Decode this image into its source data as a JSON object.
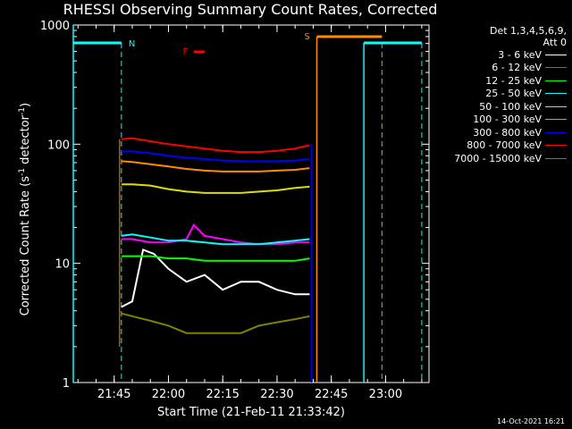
{
  "chart_data": {
    "type": "line",
    "title": "RHESSI Observing Summary Count Rates, Corrected",
    "xlabel": "Start Time (21-Feb-11 21:33:42)",
    "ylabel_main": "Corrected Count Rate (s",
    "ylabel_mid": " detector",
    "ylabel_end": ")",
    "ylabel_exp": "-1",
    "y_scale": "log",
    "ylim": [
      1,
      1000
    ],
    "xlim": [
      "21:33:42",
      "23:12:00"
    ],
    "y_ticks": [
      "1",
      "10",
      "100",
      "1000"
    ],
    "x_ticks": [
      "21:45",
      "22:00",
      "22:15",
      "22:30",
      "22:45",
      "23:00"
    ],
    "legend_header": [
      "Det 1,3,4,5,6,9,",
      "Att 0"
    ],
    "legend_placement": "right",
    "series": [
      {
        "name": "3 - 6 keV",
        "color": "#ffffff",
        "x": [
          "21:47",
          "21:50",
          "21:53",
          "21:56",
          "22:00",
          "22:05",
          "22:10",
          "22:15",
          "22:20",
          "22:25",
          "22:30",
          "22:35",
          "22:39"
        ],
        "y": [
          4.3,
          4.8,
          13,
          12,
          9,
          7,
          8,
          6,
          7,
          7,
          6,
          5.5,
          5.5
        ]
      },
      {
        "name": "6 - 12 keV",
        "color": "#ff00ff",
        "x": [
          "21:47",
          "21:50",
          "21:55",
          "22:00",
          "22:05",
          "22:07",
          "22:10",
          "22:15",
          "22:20",
          "22:25",
          "22:30",
          "22:35",
          "22:39"
        ],
        "y": [
          16,
          16,
          15,
          15,
          16,
          21,
          17,
          16,
          15,
          14.5,
          14.5,
          15,
          15
        ]
      },
      {
        "name": "12 - 25 keV",
        "color": "#00ff00",
        "x": [
          "21:47",
          "21:50",
          "21:55",
          "22:00",
          "22:05",
          "22:10",
          "22:15",
          "22:20",
          "22:25",
          "22:30",
          "22:35",
          "22:39"
        ],
        "y": [
          11.5,
          11.5,
          11.5,
          11,
          11,
          10.5,
          10.5,
          10.5,
          10.5,
          10.5,
          10.5,
          11
        ]
      },
      {
        "name": "25 - 50 keV",
        "color": "#00ffff",
        "x": [
          "21:47",
          "21:50",
          "21:55",
          "22:00",
          "22:05",
          "22:10",
          "22:15",
          "22:20",
          "22:25",
          "22:30",
          "22:35",
          "22:39"
        ],
        "y": [
          17,
          17.5,
          16.5,
          15.5,
          15.5,
          15,
          14.5,
          14.5,
          14.5,
          15,
          15.5,
          16
        ]
      },
      {
        "name": "50 - 100 keV",
        "color": "#dddd00",
        "x": [
          "21:47",
          "21:50",
          "21:55",
          "22:00",
          "22:05",
          "22:10",
          "22:15",
          "22:20",
          "22:25",
          "22:30",
          "22:35",
          "22:39"
        ],
        "y": [
          46,
          46,
          45,
          42,
          40,
          39,
          39,
          39,
          40,
          41,
          43,
          44
        ]
      },
      {
        "name": "100 - 300 keV",
        "color": "#ff8c00",
        "x": [
          "21:47",
          "21:50",
          "21:55",
          "22:00",
          "22:05",
          "22:10",
          "22:15",
          "22:20",
          "22:25",
          "22:30",
          "22:35",
          "22:39"
        ],
        "y": [
          72,
          71,
          68,
          65,
          62,
          60,
          59,
          59,
          59,
          60,
          61,
          63
        ]
      },
      {
        "name": "300 - 800 keV",
        "color": "#0000ff",
        "x": [
          "21:47",
          "21:50",
          "21:55",
          "22:00",
          "22:05",
          "22:10",
          "22:15",
          "22:20",
          "22:25",
          "22:30",
          "22:35",
          "22:39"
        ],
        "y": [
          87,
          87,
          84,
          80,
          77,
          75,
          73,
          72,
          72,
          72,
          73,
          75
        ]
      },
      {
        "name": "800 - 7000 keV",
        "color": "#ff0000",
        "x": [
          "21:47",
          "21:50",
          "21:55",
          "22:00",
          "22:05",
          "22:10",
          "22:15",
          "22:20",
          "22:25",
          "22:30",
          "22:35",
          "22:39"
        ],
        "y": [
          110,
          112,
          106,
          100,
          96,
          92,
          88,
          86,
          86,
          88,
          92,
          98
        ]
      },
      {
        "name": "7000 - 15000 keV",
        "color": "#808000",
        "x": [
          "21:47",
          "21:50",
          "21:55",
          "22:00",
          "22:05",
          "22:10",
          "22:15",
          "22:20",
          "22:25",
          "22:30",
          "22:35",
          "22:39"
        ],
        "y": [
          3.8,
          3.6,
          3.3,
          3.0,
          2.6,
          2.6,
          2.6,
          2.6,
          3.0,
          3.2,
          3.4,
          3.6
        ]
      }
    ],
    "orbit_markers": [
      {
        "label": "N",
        "color": "#00ffff",
        "time": "21:47"
      },
      {
        "label": "N",
        "color": "#00ffff",
        "time": "23:10"
      },
      {
        "label": "S",
        "color": "#ff8c00",
        "time": "22:41"
      },
      {
        "label": "S",
        "color": "#ff8c00",
        "time": "22:59"
      }
    ],
    "flare_label": "F",
    "flare_color": "#ff0000",
    "saa_label": "S",
    "night_label": "N"
  },
  "footer_date": "14-Oct-2021 16:21"
}
